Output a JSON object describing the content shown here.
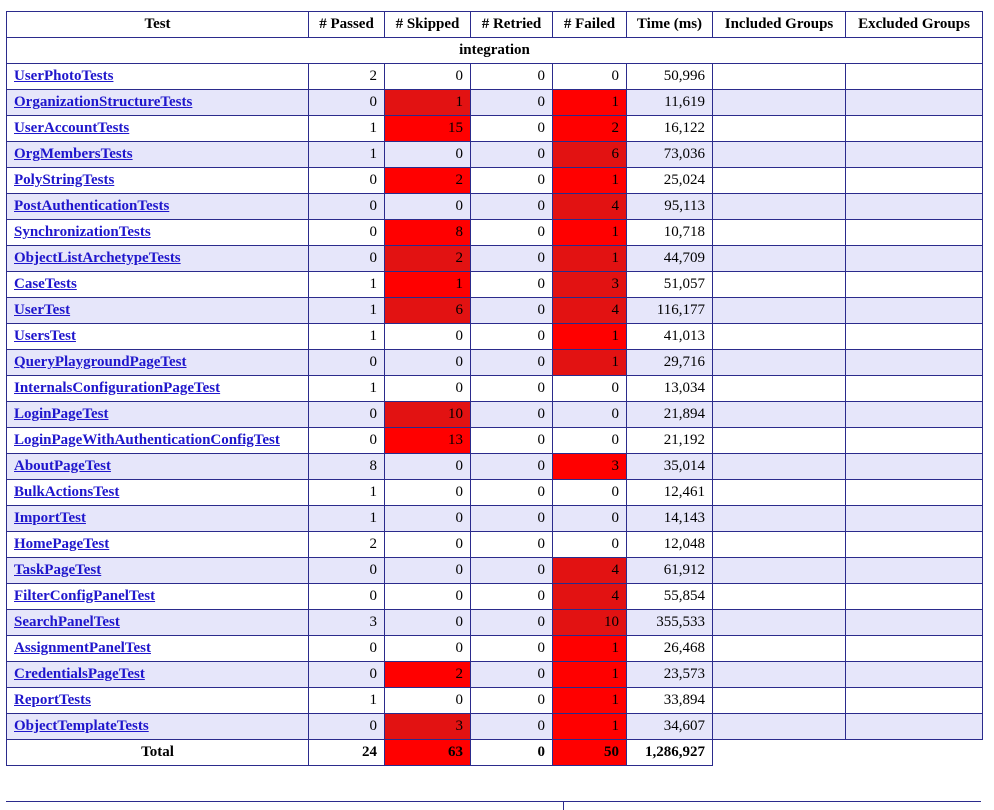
{
  "headers": {
    "test": "Test",
    "passed": "# Passed",
    "skipped": "# Skipped",
    "retried": "# Retried",
    "failed": "# Failed",
    "time": "Time (ms)",
    "included": "Included Groups",
    "excluded": "Excluded Groups"
  },
  "group_label": "integration",
  "rows": [
    {
      "name": "UserPhotoTests",
      "passed": "2",
      "skipped": "0",
      "retried": "0",
      "failed": "0",
      "time": "50,996"
    },
    {
      "name": "OrganizationStructureTests",
      "passed": "0",
      "skipped": "1",
      "retried": "0",
      "failed": "1",
      "time": "11,619"
    },
    {
      "name": "UserAccountTests",
      "passed": "1",
      "skipped": "15",
      "retried": "0",
      "failed": "2",
      "time": "16,122"
    },
    {
      "name": "OrgMembersTests",
      "passed": "1",
      "skipped": "0",
      "retried": "0",
      "failed": "6",
      "time": "73,036"
    },
    {
      "name": "PolyStringTests",
      "passed": "0",
      "skipped": "2",
      "retried": "0",
      "failed": "1",
      "time": "25,024"
    },
    {
      "name": "PostAuthenticationTests",
      "passed": "0",
      "skipped": "0",
      "retried": "0",
      "failed": "4",
      "time": "95,113"
    },
    {
      "name": "SynchronizationTests",
      "passed": "0",
      "skipped": "8",
      "retried": "0",
      "failed": "1",
      "time": "10,718"
    },
    {
      "name": "ObjectListArchetypeTests",
      "passed": "0",
      "skipped": "2",
      "retried": "0",
      "failed": "1",
      "time": "44,709"
    },
    {
      "name": "CaseTests",
      "passed": "1",
      "skipped": "1",
      "retried": "0",
      "failed": "3",
      "time": "51,057"
    },
    {
      "name": "UserTest",
      "passed": "1",
      "skipped": "6",
      "retried": "0",
      "failed": "4",
      "time": "116,177"
    },
    {
      "name": "UsersTest",
      "passed": "1",
      "skipped": "0",
      "retried": "0",
      "failed": "1",
      "time": "41,013"
    },
    {
      "name": "QueryPlaygroundPageTest",
      "passed": "0",
      "skipped": "0",
      "retried": "0",
      "failed": "1",
      "time": "29,716"
    },
    {
      "name": "InternalsConfigurationPageTest",
      "passed": "1",
      "skipped": "0",
      "retried": "0",
      "failed": "0",
      "time": "13,034"
    },
    {
      "name": "LoginPageTest",
      "passed": "0",
      "skipped": "10",
      "retried": "0",
      "failed": "0",
      "time": "21,894"
    },
    {
      "name": "LoginPageWithAuthenticationConfigTest",
      "passed": "0",
      "skipped": "13",
      "retried": "0",
      "failed": "0",
      "time": "21,192"
    },
    {
      "name": "AboutPageTest",
      "passed": "8",
      "skipped": "0",
      "retried": "0",
      "failed": "3",
      "time": "35,014"
    },
    {
      "name": "BulkActionsTest",
      "passed": "1",
      "skipped": "0",
      "retried": "0",
      "failed": "0",
      "time": "12,461"
    },
    {
      "name": "ImportTest",
      "passed": "1",
      "skipped": "0",
      "retried": "0",
      "failed": "0",
      "time": "14,143"
    },
    {
      "name": "HomePageTest",
      "passed": "2",
      "skipped": "0",
      "retried": "0",
      "failed": "0",
      "time": "12,048"
    },
    {
      "name": "TaskPageTest",
      "passed": "0",
      "skipped": "0",
      "retried": "0",
      "failed": "4",
      "time": "61,912"
    },
    {
      "name": "FilterConfigPanelTest",
      "passed": "0",
      "skipped": "0",
      "retried": "0",
      "failed": "4",
      "time": "55,854"
    },
    {
      "name": "SearchPanelTest",
      "passed": "3",
      "skipped": "0",
      "retried": "0",
      "failed": "10",
      "time": "355,533"
    },
    {
      "name": "AssignmentPanelTest",
      "passed": "0",
      "skipped": "0",
      "retried": "0",
      "failed": "1",
      "time": "26,468"
    },
    {
      "name": "CredentialsPageTest",
      "passed": "0",
      "skipped": "2",
      "retried": "0",
      "failed": "1",
      "time": "23,573"
    },
    {
      "name": "ReportTests",
      "passed": "1",
      "skipped": "0",
      "retried": "0",
      "failed": "1",
      "time": "33,894"
    },
    {
      "name": "ObjectTemplateTests",
      "passed": "0",
      "skipped": "3",
      "retried": "0",
      "failed": "1",
      "time": "34,607"
    }
  ],
  "total": {
    "label": "Total",
    "passed": "24",
    "skipped": "63",
    "retried": "0",
    "failed": "50",
    "time": "1,286,927"
  },
  "colors": {
    "link": "#1f16cc",
    "border": "#2b2b8c",
    "alt_row": "#e6e6fa",
    "fail_red": "#ff0000",
    "fail_dark_red": "#e21212"
  }
}
